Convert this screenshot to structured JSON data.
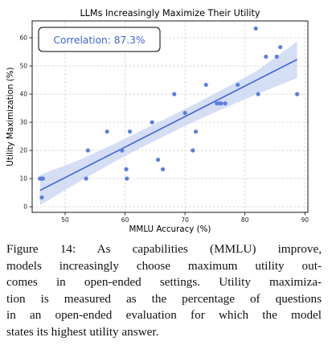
{
  "chart_data": {
    "type": "scatter",
    "title": "LLMs Increasingly Maximize Their Utility",
    "xlabel": "MMLU Accuracy (%)",
    "ylabel": "Utility Maximization (%)",
    "xlim": [
      44.5,
      90.5
    ],
    "ylim": [
      -2,
      66
    ],
    "xticks": [
      50,
      60,
      70,
      80,
      90
    ],
    "yticks": [
      0,
      10,
      20,
      30,
      40,
      50,
      60
    ],
    "grid": true,
    "annotation": "Correlation: 87.3%",
    "points": [
      {
        "x": 45.8,
        "y": 10.0
      },
      {
        "x": 46.0,
        "y": 10.0
      },
      {
        "x": 46.3,
        "y": 10.0
      },
      {
        "x": 46.1,
        "y": 3.3
      },
      {
        "x": 53.5,
        "y": 10.0
      },
      {
        "x": 53.8,
        "y": 20.0
      },
      {
        "x": 57.0,
        "y": 26.7
      },
      {
        "x": 59.5,
        "y": 20.0
      },
      {
        "x": 60.2,
        "y": 13.3
      },
      {
        "x": 60.3,
        "y": 10.0
      },
      {
        "x": 60.8,
        "y": 26.7
      },
      {
        "x": 64.5,
        "y": 30.0
      },
      {
        "x": 65.5,
        "y": 16.7
      },
      {
        "x": 66.3,
        "y": 13.3
      },
      {
        "x": 68.2,
        "y": 40.0
      },
      {
        "x": 70.0,
        "y": 33.3
      },
      {
        "x": 71.3,
        "y": 20.0
      },
      {
        "x": 71.8,
        "y": 26.7
      },
      {
        "x": 73.5,
        "y": 43.3
      },
      {
        "x": 75.3,
        "y": 36.7
      },
      {
        "x": 75.8,
        "y": 36.7
      },
      {
        "x": 76.0,
        "y": 36.7
      },
      {
        "x": 76.7,
        "y": 36.7
      },
      {
        "x": 78.8,
        "y": 43.3
      },
      {
        "x": 81.8,
        "y": 63.3
      },
      {
        "x": 82.2,
        "y": 40.0
      },
      {
        "x": 83.5,
        "y": 53.3
      },
      {
        "x": 85.3,
        "y": 53.3
      },
      {
        "x": 85.9,
        "y": 56.7
      },
      {
        "x": 88.7,
        "y": 40.0
      }
    ],
    "fit_line": {
      "x": [
        45.8,
        88.7
      ],
      "y": [
        5.8,
        52.3
      ]
    },
    "ci_band": [
      {
        "x": 45.8,
        "lo": 0.5,
        "hi": 11.3
      },
      {
        "x": 52.0,
        "lo": 8.5,
        "hi": 16.3
      },
      {
        "x": 58.0,
        "lo": 15.7,
        "hi": 22.1
      },
      {
        "x": 64.0,
        "lo": 22.4,
        "hi": 28.4
      },
      {
        "x": 70.0,
        "lo": 28.7,
        "hi": 34.7
      },
      {
        "x": 76.0,
        "lo": 34.5,
        "hi": 41.3
      },
      {
        "x": 82.0,
        "lo": 40.0,
        "hi": 48.3
      },
      {
        "x": 88.7,
        "lo": 45.7,
        "hi": 58.7
      }
    ],
    "colors": {
      "point": "#5b7fe0",
      "line": "#3c63d6",
      "band": "#c6d3f2",
      "annotation_text": "#3c63d6",
      "grid": "#d3d3d3"
    }
  },
  "caption": {
    "lines": [
      "Figure 14:  As capabilities (MMLU) improve,",
      "models increasingly choose maximum utility out-",
      "comes in open-ended settings. Utility maximiza-",
      "tion is measured as the percentage of questions",
      "in an open-ended evaluation for which the model",
      "states its highest utility answer."
    ]
  }
}
